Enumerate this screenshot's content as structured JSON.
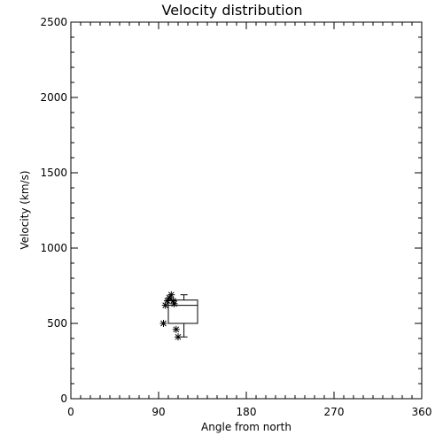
{
  "chart_data": {
    "type": "scatter",
    "title": "Velocity distribution",
    "xlabel": "Angle from north",
    "ylabel": "Velocity (km/s)",
    "xlim": [
      0,
      360
    ],
    "ylim": [
      0,
      2500
    ],
    "x_ticks": [
      "0",
      "90",
      "180",
      "270",
      "360"
    ],
    "y_ticks": [
      "0",
      "500",
      "1000",
      "1500",
      "2000",
      "2500"
    ],
    "grid": false,
    "series": [
      {
        "marker": "asterisk",
        "points": [
          {
            "x": 95,
            "y": 500
          },
          {
            "x": 97,
            "y": 620
          },
          {
            "x": 99,
            "y": 650
          },
          {
            "x": 101,
            "y": 670
          },
          {
            "x": 103,
            "y": 690
          },
          {
            "x": 105,
            "y": 650
          },
          {
            "x": 106,
            "y": 630
          },
          {
            "x": 108,
            "y": 460
          },
          {
            "x": 110,
            "y": 410
          }
        ]
      }
    ],
    "box": {
      "x_left": 100,
      "x_right": 130,
      "q1": 500,
      "median": 620,
      "q3": 655,
      "whisker_high": 690,
      "whisker_low": 410,
      "whisker_x": 116
    }
  }
}
